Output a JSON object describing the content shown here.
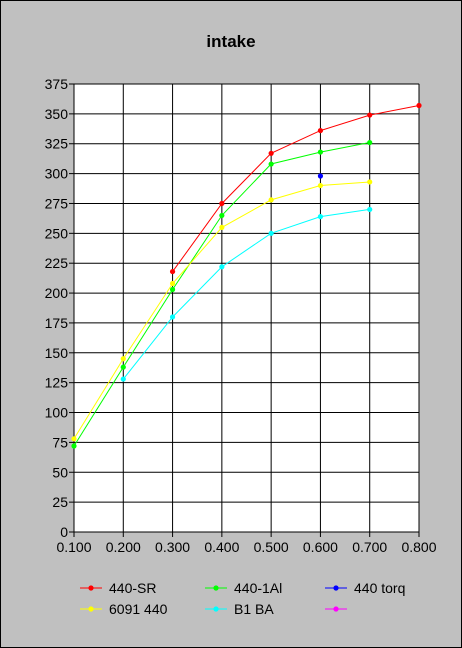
{
  "chart_data": {
    "type": "line",
    "title": "intake",
    "xlabel": "",
    "ylabel": "",
    "xlim": [
      0.1,
      0.8
    ],
    "ylim": [
      0,
      375
    ],
    "x_ticks": [
      "0.100",
      "0.200",
      "0.300",
      "0.400",
      "0.500",
      "0.600",
      "0.700",
      "0.800"
    ],
    "y_ticks": [
      "0",
      "25",
      "50",
      "75",
      "100",
      "125",
      "150",
      "175",
      "200",
      "225",
      "250",
      "275",
      "300",
      "325",
      "350",
      "375"
    ],
    "grid": true,
    "legend": "bottom",
    "series": [
      {
        "name": "440-SR",
        "color": "#ff0000",
        "x": [
          0.3,
          0.4,
          0.5,
          0.6,
          0.7,
          0.8
        ],
        "values": [
          218,
          275,
          317,
          336,
          349,
          357
        ]
      },
      {
        "name": "440-1Al",
        "color": "#00ff00",
        "x": [
          0.1,
          0.2,
          0.3,
          0.4,
          0.5,
          0.6,
          0.7
        ],
        "values": [
          72,
          138,
          203,
          265,
          308,
          318,
          326
        ]
      },
      {
        "name": "440 torq",
        "color": "#0000ff",
        "x": [
          0.6
        ],
        "values": [
          298
        ]
      },
      {
        "name": "6091 440",
        "color": "#ffff00",
        "x": [
          0.1,
          0.2,
          0.3,
          0.4,
          0.5,
          0.6,
          0.7
        ],
        "values": [
          78,
          145,
          208,
          255,
          278,
          290,
          293
        ]
      },
      {
        "name": "B1 BA",
        "color": "#00ffff",
        "x": [
          0.2,
          0.3,
          0.4,
          0.5,
          0.6,
          0.7
        ],
        "values": [
          128,
          180,
          222,
          250,
          264,
          270
        ]
      },
      {
        "name": "",
        "color": "#ff00ff",
        "x": [],
        "values": []
      }
    ]
  }
}
